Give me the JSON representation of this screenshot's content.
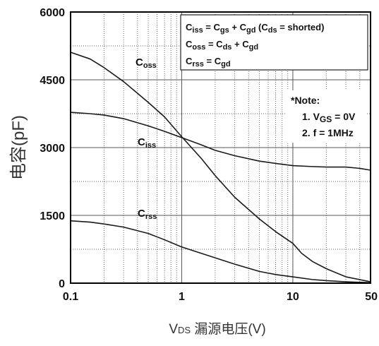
{
  "chart_data": {
    "type": "line",
    "x_scale": "log",
    "xlim": [
      0.1,
      50
    ],
    "ylim": [
      0,
      6000
    ],
    "x_ticks": [
      "0.1",
      "1",
      "10",
      "50"
    ],
    "x_tick_values": [
      0.1,
      1,
      10,
      50
    ],
    "y_ticks": [
      "0",
      "1500",
      "3000",
      "4500",
      "6000"
    ],
    "y_tick_values": [
      0,
      1500,
      3000,
      4500,
      6000
    ],
    "xlabel": {
      "main": "V",
      "sub": "DS",
      "rest": " 漏源电压(V)"
    },
    "ylabel": "电容(pF)",
    "grid": true,
    "series": [
      {
        "name": "Coss",
        "label_main": "C",
        "label_sub": "oss",
        "x": [
          0.1,
          0.15,
          0.2,
          0.3,
          0.5,
          0.7,
          1,
          1.5,
          2,
          3,
          5,
          7,
          10,
          12,
          15,
          20,
          30,
          50
        ],
        "y": [
          5110,
          4960,
          4770,
          4460,
          4000,
          3680,
          3240,
          2760,
          2380,
          1900,
          1420,
          1140,
          880,
          660,
          480,
          320,
          140,
          30
        ]
      },
      {
        "name": "Ciss",
        "label_main": "C",
        "label_sub": "iss",
        "x": [
          0.1,
          0.15,
          0.2,
          0.3,
          0.5,
          0.7,
          1,
          1.5,
          2,
          3,
          5,
          7,
          10,
          15,
          20,
          30,
          40,
          50
        ],
        "y": [
          3780,
          3750,
          3720,
          3640,
          3480,
          3360,
          3220,
          3060,
          2940,
          2820,
          2700,
          2650,
          2600,
          2580,
          2570,
          2570,
          2540,
          2500
        ]
      },
      {
        "name": "Crss",
        "label_main": "C",
        "label_sub": "rss",
        "x": [
          0.1,
          0.15,
          0.2,
          0.3,
          0.5,
          0.7,
          1,
          1.5,
          2,
          3,
          5,
          7,
          10,
          15,
          20,
          30,
          50
        ],
        "y": [
          1380,
          1350,
          1310,
          1240,
          1100,
          960,
          800,
          660,
          560,
          420,
          260,
          190,
          140,
          80,
          55,
          30,
          10
        ]
      }
    ],
    "legend": {
      "position": "top-right",
      "lines": [
        {
          "segments": [
            [
              "C",
              ""
            ],
            [
              "iss",
              "sub"
            ],
            [
              " = C",
              ""
            ],
            [
              "gs",
              "sub"
            ],
            [
              " + C",
              ""
            ],
            [
              "gd",
              "sub"
            ],
            [
              " (C",
              ""
            ],
            [
              "ds",
              "sub"
            ],
            [
              " = shorted)",
              ""
            ]
          ]
        },
        {
          "segments": [
            [
              "C",
              ""
            ],
            [
              "oss",
              "sub"
            ],
            [
              " = C",
              ""
            ],
            [
              "ds",
              "sub"
            ],
            [
              " + C",
              ""
            ],
            [
              "gd",
              "sub"
            ]
          ]
        },
        {
          "segments": [
            [
              "C",
              ""
            ],
            [
              "rss",
              "sub"
            ],
            [
              " = C",
              ""
            ],
            [
              "gd",
              "sub"
            ]
          ]
        }
      ]
    },
    "notes": {
      "title": "*Note:",
      "lines": [
        {
          "segments": [
            [
              "1. V",
              ""
            ],
            [
              "GS",
              "sub"
            ],
            [
              " = 0V",
              ""
            ]
          ]
        },
        {
          "segments": [
            [
              "2. f = 1MHz",
              ""
            ]
          ]
        }
      ]
    }
  }
}
